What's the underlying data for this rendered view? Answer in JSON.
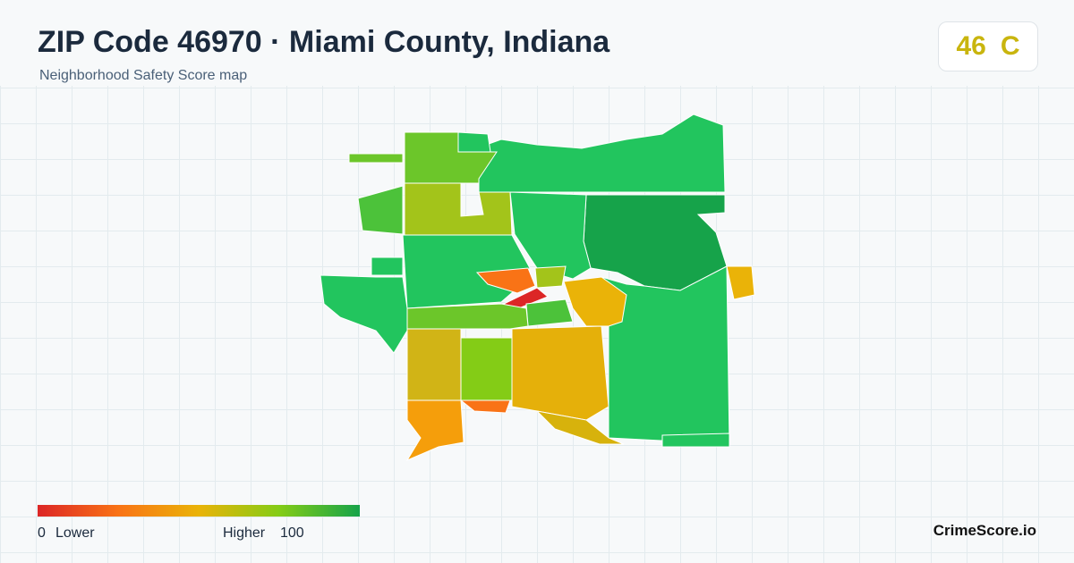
{
  "header": {
    "title": "ZIP Code 46970 · Miami County, Indiana",
    "subtitle": "Neighborhood Safety Score map"
  },
  "score": {
    "value": 46,
    "grade": "C"
  },
  "legend": {
    "min": 0,
    "min_label": "Lower",
    "max_label": "Higher",
    "max": 100
  },
  "brand": "CrimeScore.io"
}
